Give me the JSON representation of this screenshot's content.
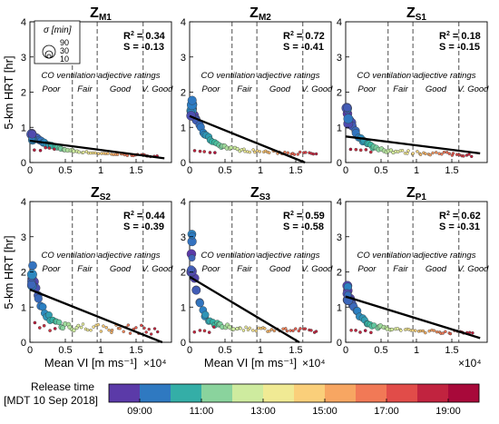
{
  "chart_data": {
    "type": "scatter",
    "y_axis_label": "5-km HRT [hr]",
    "x_axis_label": "Mean VI [m ms⁻¹]",
    "x_exponent_label": "×10⁴",
    "x_ticks": [
      "0",
      "0.5",
      "1",
      "1.5"
    ],
    "y_ticks": [
      "0",
      "1",
      "2",
      "3",
      "4"
    ],
    "xlim": [
      0,
      20000
    ],
    "ylim": [
      0,
      4
    ],
    "ventilation_title": "CO ventilation adjective ratings",
    "ventilation_thresholds": [
      6000,
      9500,
      16000
    ],
    "ventilation_ratings": [
      "Poor",
      "Fair",
      "Good",
      "V. Good"
    ],
    "size_legend": {
      "title": "σ [min]",
      "values": [
        "90",
        "30",
        "10"
      ]
    },
    "colorbar": {
      "label_line1": "Release time",
      "label_line2": "[MDT 10 Sep 2018]",
      "start_hour": 8,
      "end_hour": 20,
      "ticks": [
        "09:00",
        "11:00",
        "13:00",
        "15:00",
        "17:00",
        "19:00"
      ],
      "colors": [
        "#5b3aa8",
        "#2b7fc4",
        "#36b8a0",
        "#a9dd9c",
        "#e3f3a0",
        "#fbe38a",
        "#f8b867",
        "#f4875a",
        "#e8544b",
        "#c4263f",
        "#a8093a"
      ]
    },
    "panels": [
      {
        "id": "m1",
        "title": "Z",
        "sub": "M1",
        "r2": "0.34",
        "s": "-0.13",
        "fit_x": [
          0,
          19000
        ],
        "fit_y": [
          0.62,
          0.12
        ]
      },
      {
        "id": "m2",
        "title": "Z",
        "sub": "M2",
        "r2": "0.72",
        "s": "-0.41",
        "fit_x": [
          0,
          16300
        ],
        "fit_y": [
          1.32,
          0.0
        ]
      },
      {
        "id": "s1",
        "title": "Z",
        "sub": "S1",
        "r2": "0.18",
        "s": "-0.15",
        "fit_x": [
          0,
          19000
        ],
        "fit_y": [
          0.74,
          0.26
        ]
      },
      {
        "id": "s2",
        "title": "Z",
        "sub": "S2",
        "r2": "0.44",
        "s": "-0.39",
        "fit_x": [
          0,
          18700
        ],
        "fit_y": [
          1.5,
          0.0
        ]
      },
      {
        "id": "s3",
        "title": "Z",
        "sub": "S3",
        "r2": "0.59",
        "s": "-0.58",
        "fit_x": [
          0,
          15500
        ],
        "fit_y": [
          1.86,
          0.0
        ]
      },
      {
        "id": "p1",
        "title": "Z",
        "sub": "P1",
        "r2": "0.62",
        "s": "-0.31",
        "fit_x": [
          0,
          19000
        ],
        "fit_y": [
          1.3,
          0.12
        ]
      }
    ]
  }
}
